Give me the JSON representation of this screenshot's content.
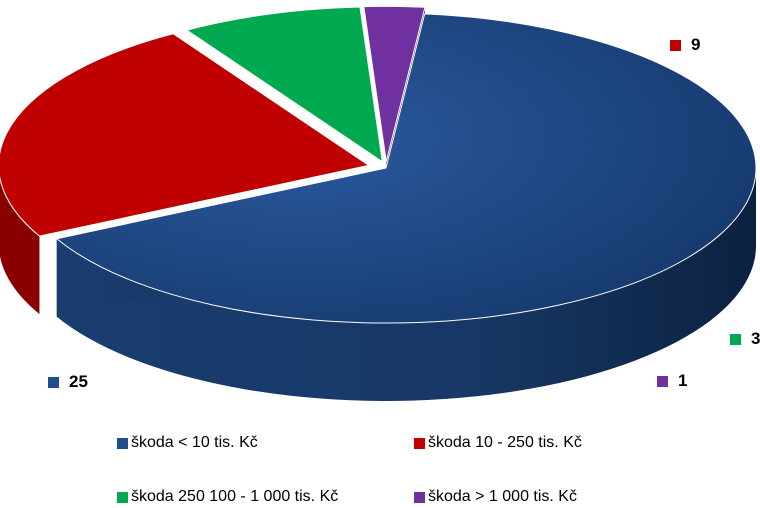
{
  "chart_data": {
    "type": "pie",
    "title": "",
    "categories": [
      "škoda < 10 tis. Kč",
      "škoda 10 - 250 tis. Kč",
      "škoda 250 100 - 1 000 tis. Kč",
      "škoda > 1 000 tis. Kč"
    ],
    "values": [
      25,
      9,
      3,
      1
    ],
    "value_labels": [
      "25",
      "9",
      "3",
      "1"
    ],
    "colors": [
      "#1f4e8c",
      "#c00000",
      "#00a84f",
      "#7030a0"
    ],
    "style": "3d-exploded",
    "legend_position": "bottom",
    "legend": [
      {
        "label": "škoda < 10 tis. Kč",
        "color": "#1f4e8c"
      },
      {
        "label": "škoda 10 - 250 tis. Kč",
        "color": "#c00000"
      },
      {
        "label": "škoda 250 100 - 1 000 tis. Kč",
        "color": "#00a84f"
      },
      {
        "label": "škoda > 1 000 tis. Kč",
        "color": "#7030a0"
      }
    ]
  }
}
